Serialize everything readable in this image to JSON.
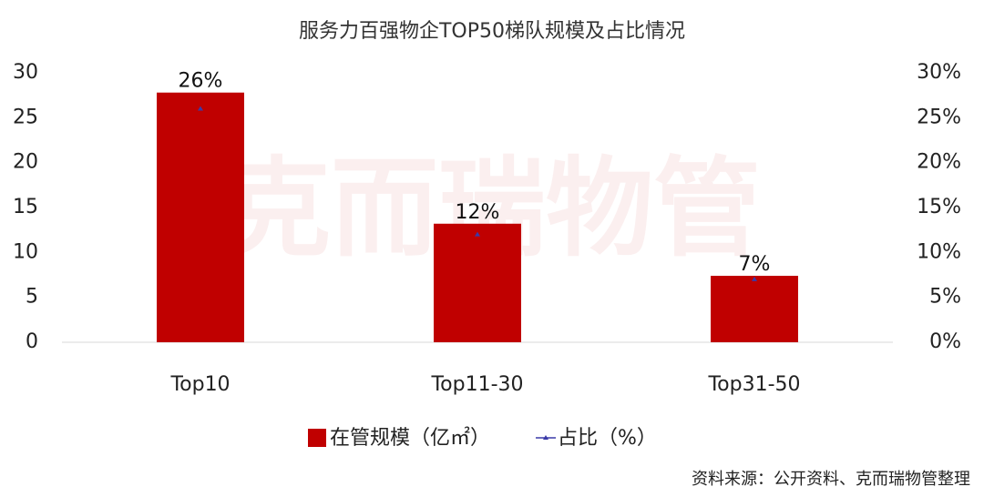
{
  "chart_data": {
    "type": "bar",
    "title": "服务力百强物企TOP50梯队规模及占比情况",
    "watermark": "克而瑞物管",
    "source": "资料来源：公开资料、克而瑞物管整理",
    "categories": [
      "Top10",
      "Top11-30",
      "Top31-50"
    ],
    "series": [
      {
        "name": "在管规模（亿㎡）",
        "color": "#c00000",
        "values": [
          27.8,
          13.2,
          7.4
        ]
      },
      {
        "name": "占比（%）",
        "color": "#3a3aa8",
        "type": "line",
        "axis": "y2",
        "values": [
          26,
          12,
          7
        ],
        "value_labels": [
          "26%",
          "12%",
          "7%"
        ]
      }
    ],
    "ylim": [
      0,
      30
    ],
    "yticks": [
      0,
      5,
      10,
      15,
      20,
      25,
      30
    ],
    "y2lim": [
      0,
      30
    ],
    "y2ticks": [
      {
        "value": 0,
        "label": "0%"
      },
      {
        "value": 5,
        "label": "5%"
      },
      {
        "value": 10,
        "label": "10%"
      },
      {
        "value": 15,
        "label": "15%"
      },
      {
        "value": 20,
        "label": "20%"
      },
      {
        "value": 25,
        "label": "25%"
      },
      {
        "value": 30,
        "label": "30%"
      }
    ],
    "legend": "bottom"
  }
}
